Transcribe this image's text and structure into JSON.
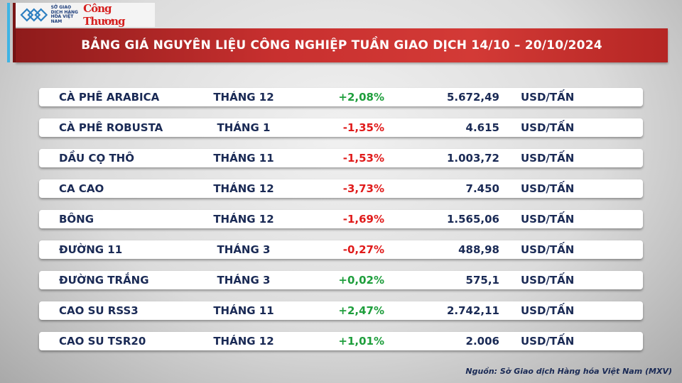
{
  "logo": {
    "exchange": "SỞ GIAO DỊCH HÀNG HÓA VIỆT NAM",
    "brand": "Công Thương"
  },
  "title": "BẢNG GIÁ NGUYÊN LIỆU CÔNG NGHIỆP TUẦN GIAO DỊCH 14/10 – 20/10/2024",
  "colors": {
    "up": "#1e9e3c",
    "down": "#e01b1b",
    "header": "#c8302f"
  },
  "rows": [
    {
      "name": "CÀ PHÊ ARABICA",
      "month": "THÁNG 12",
      "change": "+2,08%",
      "price": "5.672,49",
      "unit": "USD/TẤN"
    },
    {
      "name": "CÀ PHÊ ROBUSTA",
      "month": "THÁNG 1",
      "change": "-1,35%",
      "price": "4.615",
      "unit": "USD/TẤN"
    },
    {
      "name": "DẦU CỌ THÔ",
      "month": "THÁNG 11",
      "change": "-1,53%",
      "price": "1.003,72",
      "unit": "USD/TẤN"
    },
    {
      "name": "CA CAO",
      "month": "THÁNG 12",
      "change": "-3,73%",
      "price": "7.450",
      "unit": "USD/TẤN"
    },
    {
      "name": "BÔNG",
      "month": "THÁNG 12",
      "change": "-1,69%",
      "price": "1.565,06",
      "unit": "USD/TẤN"
    },
    {
      "name": "ĐƯỜNG 11",
      "month": "THÁNG 3",
      "change": "-0,27%",
      "price": "488,98",
      "unit": "USD/TẤN"
    },
    {
      "name": "ĐƯỜNG TRẮNG",
      "month": "THÁNG 3",
      "change": "+0,02%",
      "price": "575,1",
      "unit": "USD/TẤN"
    },
    {
      "name": "CAO SU RSS3",
      "month": "THÁNG 11",
      "change": "+2,47%",
      "price": "2.742,11",
      "unit": "USD/TẤN"
    },
    {
      "name": "CAO SU TSR20",
      "month": "THÁNG 12",
      "change": "+1,01%",
      "price": "2.006",
      "unit": "USD/TẤN"
    }
  ],
  "source": "Nguồn: Sở Giao dịch Hàng hóa Việt Nam (MXV)"
}
